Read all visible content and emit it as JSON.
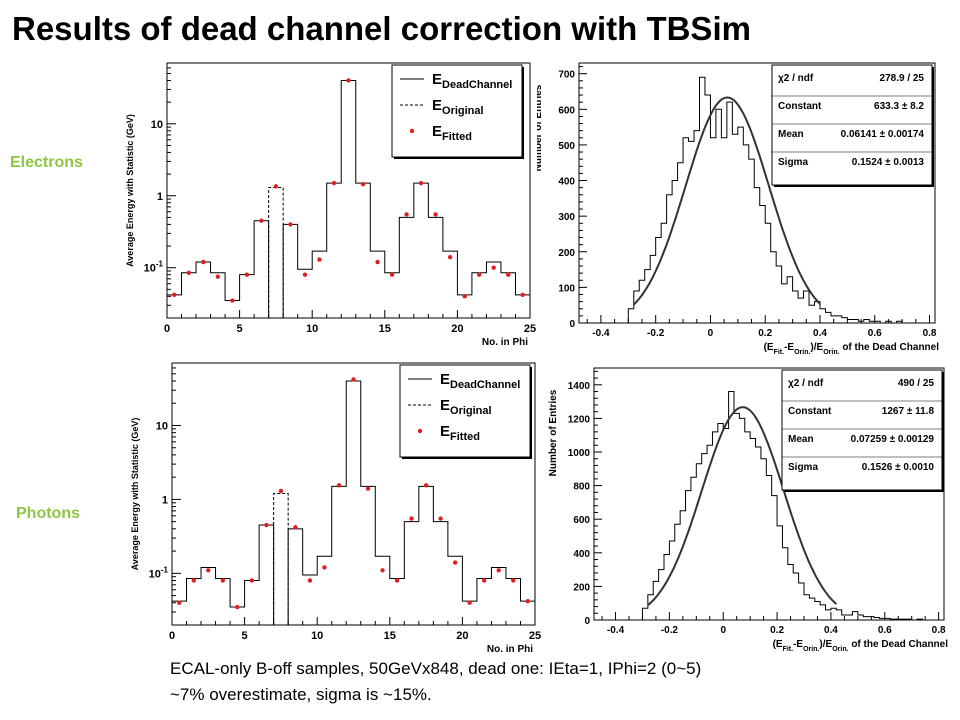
{
  "slide": {
    "title": "Results of dead channel correction with TBSim",
    "row_labels": [
      "Electrons",
      "Photons"
    ],
    "caption_lines": [
      "ECAL-only B-off samples, 50GeVx848, dead one: IEta=1, IPhi=2 (0~5)",
      "~7% overestimate, sigma is ~15%."
    ]
  },
  "chart_data": [
    {
      "type": "line",
      "row": "Electrons",
      "xlabel": "No. in Phi",
      "ylabel": "Average Energy with Statistic (GeV)",
      "xlim": [
        0,
        25
      ],
      "ylim": [
        0.02,
        70
      ],
      "yscale": "log",
      "xticks": [
        "0",
        "5",
        "10",
        "15",
        "20",
        "25"
      ],
      "yticks": [
        {
          "v": 0.1,
          "label": "10-1"
        },
        {
          "v": 1,
          "label": "1"
        },
        {
          "v": 10,
          "label": "10"
        }
      ],
      "legend": [
        "DeadChannel",
        "Original",
        "Fitted"
      ],
      "legend_prefix": "E",
      "dead_bin": 7,
      "series": [
        {
          "name": "DeadChannel",
          "style": "step",
          "values": [
            0.042,
            0.085,
            0.12,
            0.085,
            0.035,
            0.08,
            0.45,
            0,
            0.4,
            0.095,
            0.17,
            1.5,
            40,
            1.5,
            0.17,
            0.085,
            0.5,
            1.5,
            0.5,
            0.17,
            0.042,
            0.085,
            0.12,
            0.085,
            0.042
          ]
        },
        {
          "name": "Original",
          "style": "dashed-step",
          "values": [
            null,
            null,
            null,
            null,
            null,
            null,
            null,
            1.3,
            null,
            null,
            null,
            null,
            null,
            null,
            null,
            null,
            null,
            null,
            null,
            null,
            null,
            null,
            null,
            null,
            null
          ]
        },
        {
          "name": "Fitted",
          "style": "points",
          "values": [
            0.042,
            0.085,
            0.12,
            0.075,
            0.035,
            0.08,
            0.45,
            1.35,
            0.4,
            0.08,
            0.13,
            1.5,
            40,
            1.45,
            0.12,
            0.08,
            0.55,
            1.5,
            0.55,
            0.14,
            0.04,
            0.08,
            0.1,
            0.08,
            0.042
          ]
        }
      ]
    },
    {
      "type": "bar",
      "row": "Electrons",
      "xlabel": "(EFit.-EOrin.)/EOrin. of the Dead Channel",
      "ylabel": "Number of Entries",
      "xlim": [
        -0.48,
        0.82
      ],
      "ylim": [
        0,
        730
      ],
      "xticks": [
        "-0.4",
        "-0.2",
        "0",
        "0.2",
        "0.4",
        "0.6",
        "0.8"
      ],
      "yticks": [
        "0",
        "100",
        "200",
        "300",
        "400",
        "500",
        "600",
        "700"
      ],
      "bin_start": -0.3,
      "bin_width": 0.02,
      "hist": [
        40,
        90,
        120,
        150,
        190,
        240,
        280,
        360,
        400,
        450,
        520,
        510,
        540,
        690,
        640,
        520,
        600,
        520,
        620,
        530,
        550,
        500,
        460,
        380,
        330,
        280,
        200,
        160,
        110,
        130,
        90,
        70,
        90,
        50,
        60,
        40,
        30,
        20,
        20,
        15,
        10,
        10,
        5,
        10,
        5,
        5,
        0,
        5,
        0,
        5,
        0,
        0,
        0,
        0,
        0
      ],
      "fit": {
        "constant": 633.3,
        "mean": 0.06141,
        "sigma": 0.1524,
        "range": [
          -0.28,
          0.4
        ]
      },
      "stats": [
        {
          "name": "χ2 / ndf",
          "value": "278.9 / 25"
        },
        {
          "name": "Constant",
          "value": "633.3 ± 8.2"
        },
        {
          "name": "Mean",
          "value": "0.06141 ± 0.00174"
        },
        {
          "name": "Sigma",
          "value": "0.1524 ± 0.0013"
        }
      ]
    },
    {
      "type": "line",
      "row": "Photons",
      "xlabel": "No. in Phi",
      "ylabel": "Average Energy with Statistic (GeV)",
      "xlim": [
        0,
        25
      ],
      "ylim": [
        0.02,
        70
      ],
      "yscale": "log",
      "xticks": [
        "0",
        "5",
        "10",
        "15",
        "20",
        "25"
      ],
      "yticks": [
        {
          "v": 0.1,
          "label": "10-1"
        },
        {
          "v": 1,
          "label": "1"
        },
        {
          "v": 10,
          "label": "10"
        }
      ],
      "legend": [
        "DeadChannel",
        "Original",
        "Fitted"
      ],
      "legend_prefix": "E",
      "dead_bin": 7,
      "series": [
        {
          "name": "DeadChannel",
          "style": "step",
          "values": [
            0.042,
            0.085,
            0.12,
            0.085,
            0.035,
            0.08,
            0.45,
            0,
            0.4,
            0.095,
            0.17,
            1.5,
            40,
            1.5,
            0.17,
            0.085,
            0.5,
            1.5,
            0.5,
            0.17,
            0.042,
            0.085,
            0.12,
            0.085,
            0.042
          ]
        },
        {
          "name": "Original",
          "style": "dashed-step",
          "values": [
            null,
            null,
            null,
            null,
            null,
            null,
            null,
            1.2,
            null,
            null,
            null,
            null,
            null,
            null,
            null,
            null,
            null,
            null,
            null,
            null,
            null,
            null,
            null,
            null,
            null
          ]
        },
        {
          "name": "Fitted",
          "style": "points",
          "values": [
            0.04,
            0.08,
            0.11,
            0.08,
            0.035,
            0.08,
            0.45,
            1.3,
            0.42,
            0.08,
            0.12,
            1.55,
            42,
            1.4,
            0.11,
            0.08,
            0.55,
            1.55,
            0.55,
            0.14,
            0.04,
            0.08,
            0.11,
            0.08,
            0.042
          ]
        }
      ]
    },
    {
      "type": "bar",
      "row": "Photons",
      "xlabel": "(EFit.-EOrin.)/EOrin. of the Dead Channel",
      "ylabel": "Number of Entries",
      "xlim": [
        -0.48,
        0.82
      ],
      "ylim": [
        0,
        1500
      ],
      "xticks": [
        "-0.4",
        "-0.2",
        "0",
        "0.2",
        "0.4",
        "0.6",
        "0.8"
      ],
      "yticks": [
        "0",
        "200",
        "400",
        "600",
        "800",
        "1000",
        "1200",
        "1400"
      ],
      "bin_start": -0.3,
      "bin_width": 0.02,
      "hist": [
        70,
        150,
        230,
        300,
        390,
        470,
        570,
        650,
        770,
        850,
        930,
        990,
        1040,
        1120,
        1170,
        1140,
        1360,
        1230,
        1200,
        1120,
        1080,
        1030,
        960,
        860,
        740,
        560,
        430,
        330,
        280,
        220,
        150,
        130,
        110,
        90,
        60,
        70,
        60,
        30,
        30,
        50,
        30,
        20,
        20,
        15,
        10,
        10,
        5,
        5,
        5,
        5,
        0,
        5,
        0,
        0,
        0
      ],
      "fit": {
        "constant": 1267,
        "mean": 0.07259,
        "sigma": 0.1526,
        "range": [
          -0.28,
          0.42
        ]
      },
      "stats": [
        {
          "name": "χ2 / ndf",
          "value": "490 / 25"
        },
        {
          "name": "Constant",
          "value": "1267 ± 11.8"
        },
        {
          "name": "Mean",
          "value": "0.07259 ± 0.00129"
        },
        {
          "name": "Sigma",
          "value": "0.1526 ± 0.0010"
        }
      ]
    }
  ]
}
